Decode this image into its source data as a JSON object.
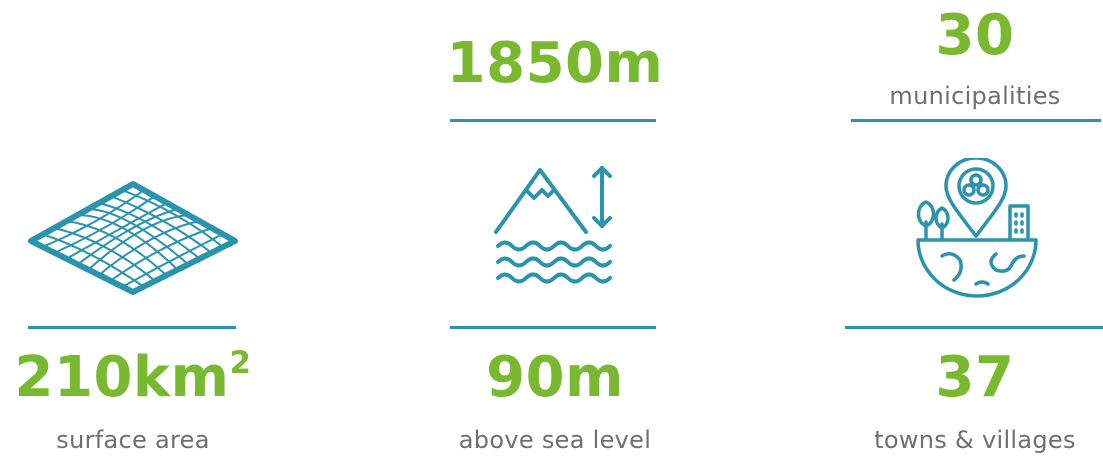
{
  "stats": {
    "surface": {
      "value": "210km",
      "superscript": "2",
      "label": "surface area"
    },
    "elevation_max": {
      "value": "1850m"
    },
    "elevation_min": {
      "value": "90m",
      "label": "above sea level"
    },
    "municipalities": {
      "value": "30",
      "label": "municipalities"
    },
    "towns": {
      "value": "37",
      "label": "towns & villages"
    }
  },
  "icons": {
    "surface": "terrain-grid-icon",
    "elevation": "mountain-altitude-icon",
    "towns": "location-globe-icon"
  },
  "colors": {
    "value": "#78b92f",
    "label": "#6f6f6f",
    "accent": "#2a93ad"
  }
}
